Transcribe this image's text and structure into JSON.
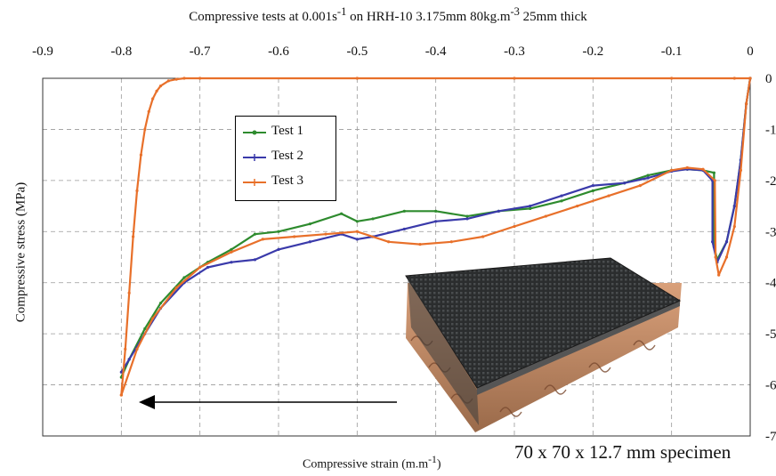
{
  "chart_data": {
    "type": "line",
    "title": "Compressive tests at 0.001s",
    "title_sup1": "-1",
    "title_mid": " on HRH-10 3.175mm 80kg.m",
    "title_sup2": "-3",
    "title_end": " 25mm thick",
    "xlabel": "Compressive strain (m.m",
    "xlabel_sup": "-1",
    "xlabel_end": ")",
    "ylabel": "Compressive stress (MPa)",
    "xlim": [
      -0.9,
      0
    ],
    "ylim": [
      -7,
      0
    ],
    "x_ticks": [
      "-0.9",
      "-0.8",
      "-0.7",
      "-0.6",
      "-0.5",
      "-0.4",
      "-0.3",
      "-0.2",
      "-0.1",
      "0"
    ],
    "y_ticks": [
      "0",
      "-1",
      "-2",
      "-3",
      "-4",
      "-5",
      "-6",
      "-7"
    ],
    "x_axis_position": "top",
    "y_axis_position": "right",
    "grid": true,
    "legend_position": "upper-left",
    "annotation": "70 x 70 x 12.7 mm specimen",
    "series": [
      {
        "name": "Test 1",
        "color": "#2e8b2e",
        "x": [
          0,
          -0.005,
          -0.012,
          -0.02,
          -0.03,
          -0.042,
          -0.046,
          -0.046,
          -0.06,
          -0.08,
          -0.1,
          -0.13,
          -0.16,
          -0.2,
          -0.24,
          -0.28,
          -0.32,
          -0.36,
          -0.4,
          -0.44,
          -0.48,
          -0.5,
          -0.52,
          -0.56,
          -0.6,
          -0.63,
          -0.66,
          -0.69,
          -0.72,
          -0.75,
          -0.77,
          -0.79,
          -0.8
        ],
        "y": [
          0,
          -0.5,
          -1.6,
          -2.5,
          -3.2,
          -3.55,
          -3.3,
          -1.85,
          -1.8,
          -1.78,
          -1.8,
          -1.9,
          -2.05,
          -2.2,
          -2.4,
          -2.55,
          -2.6,
          -2.7,
          -2.6,
          -2.6,
          -2.75,
          -2.8,
          -2.65,
          -2.85,
          -3.0,
          -3.05,
          -3.35,
          -3.6,
          -3.9,
          -4.4,
          -4.9,
          -5.5,
          -5.85
        ]
      },
      {
        "name": "Test 2",
        "color": "#3a3aaa",
        "x": [
          0,
          -0.005,
          -0.012,
          -0.02,
          -0.03,
          -0.042,
          -0.048,
          -0.048,
          -0.06,
          -0.08,
          -0.1,
          -0.13,
          -0.16,
          -0.2,
          -0.24,
          -0.28,
          -0.32,
          -0.36,
          -0.4,
          -0.44,
          -0.48,
          -0.5,
          -0.52,
          -0.56,
          -0.6,
          -0.63,
          -0.66,
          -0.69,
          -0.72,
          -0.75,
          -0.77,
          -0.79,
          -0.8
        ],
        "y": [
          0,
          -0.5,
          -1.6,
          -2.5,
          -3.2,
          -3.6,
          -3.2,
          -2.0,
          -1.8,
          -1.78,
          -1.82,
          -1.95,
          -2.05,
          -2.1,
          -2.3,
          -2.5,
          -2.6,
          -2.75,
          -2.8,
          -2.95,
          -3.1,
          -3.15,
          -3.05,
          -3.2,
          -3.35,
          -3.55,
          -3.6,
          -3.7,
          -4.0,
          -4.5,
          -5.0,
          -5.5,
          -5.75
        ]
      },
      {
        "name": "Test 3",
        "color": "#e8702a",
        "x": [
          0,
          -0.005,
          -0.012,
          -0.02,
          -0.03,
          -0.04,
          -0.044,
          -0.045,
          -0.06,
          -0.08,
          -0.1,
          -0.14,
          -0.18,
          -0.22,
          -0.26,
          -0.3,
          -0.34,
          -0.38,
          -0.42,
          -0.46,
          -0.5,
          -0.54,
          -0.58,
          -0.62,
          -0.66,
          -0.7,
          -0.73,
          -0.76,
          -0.78,
          -0.8,
          -0.8,
          -0.795,
          -0.79,
          -0.785,
          -0.78,
          -0.775,
          -0.77,
          -0.765,
          -0.76,
          -0.755,
          -0.75,
          -0.74,
          -0.73,
          -0.72,
          -0.7,
          -0.5,
          -0.3,
          -0.1,
          -0.02,
          0
        ],
        "y": [
          0,
          -0.5,
          -1.8,
          -2.9,
          -3.5,
          -3.85,
          -3.5,
          -2.0,
          -1.78,
          -1.75,
          -1.8,
          -2.1,
          -2.3,
          -2.5,
          -2.7,
          -2.9,
          -3.1,
          -3.2,
          -3.25,
          -3.2,
          -3.0,
          -3.05,
          -3.1,
          -3.15,
          -3.4,
          -3.7,
          -4.1,
          -4.7,
          -5.3,
          -6.2,
          -6.2,
          -5.3,
          -4.2,
          -3.1,
          -2.2,
          -1.5,
          -1.0,
          -0.65,
          -0.4,
          -0.25,
          -0.15,
          -0.05,
          -0.02,
          0,
          0,
          0,
          0,
          0,
          0,
          0
        ]
      }
    ]
  }
}
